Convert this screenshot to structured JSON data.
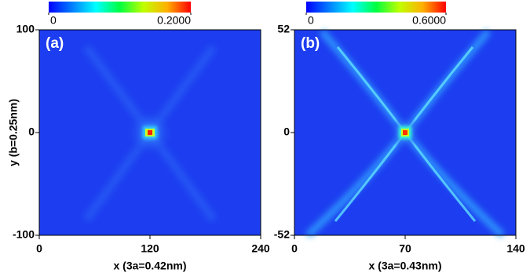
{
  "chart_data": [
    {
      "type": "heatmap",
      "label": "(a)",
      "xlabel": "x (3a=0.42nm)",
      "ylabel": "y (b=0.25nm)",
      "xlim": [
        0,
        240
      ],
      "xticks": [
        0,
        120,
        240
      ],
      "ylim": [
        -100,
        100
      ],
      "yticks": [
        -100,
        0,
        100
      ],
      "clim": [
        0,
        0.2
      ],
      "cticks": [
        0,
        {
          "value": 0.2,
          "label": "0.2000"
        }
      ],
      "colorscale": [
        "#0000ff",
        "#0080ff",
        "#00ffff",
        "#00ff40",
        "#c0ff00",
        "#ffb000",
        "#ff0000"
      ]
    },
    {
      "type": "heatmap",
      "label": "(b)",
      "xlabel": "x (3a=0.43nm)",
      "xlim": [
        0,
        140
      ],
      "xticks": [
        0,
        70,
        140
      ],
      "ylim": [
        -52,
        52
      ],
      "yticks": [
        -52,
        0,
        52
      ],
      "clim": [
        0,
        0.6
      ],
      "cticks": [
        0,
        {
          "value": 0.6,
          "label": "0.6000"
        }
      ],
      "colorscale": [
        "#0000ff",
        "#0080ff",
        "#00ffff",
        "#00ff40",
        "#c0ff00",
        "#ffb000",
        "#ff0000"
      ]
    }
  ]
}
